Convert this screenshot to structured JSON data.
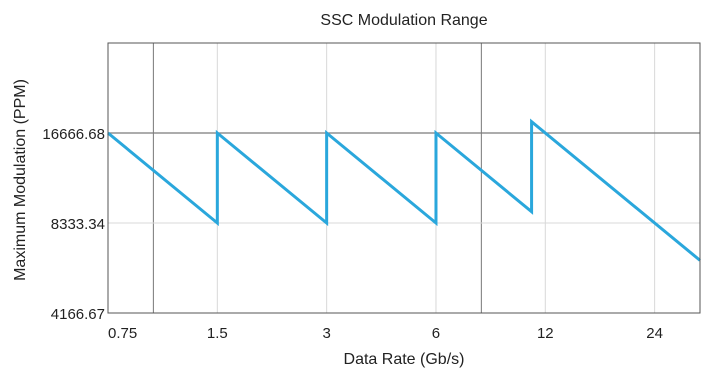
{
  "chart_data": {
    "type": "line",
    "title": "SSC Modulation Range",
    "xlabel": "Data Rate (Gb/s)",
    "ylabel": "Maximum Modulation (PPM)",
    "x_scale": "log2",
    "y_scale": "log2",
    "xlim": [
      0.75,
      32
    ],
    "ylim": [
      4166.67,
      33333.36
    ],
    "x_ticks": [
      "0.75",
      "1.5",
      "3",
      "6",
      "12",
      "24"
    ],
    "x_tick_values": [
      0.75,
      1.5,
      3,
      6,
      12,
      24
    ],
    "y_ticks": [
      "4166.67",
      "8333.34",
      "16666.68"
    ],
    "y_tick_values": [
      4166.67,
      8333.34,
      16666.68
    ],
    "grid": true,
    "series": [
      {
        "color": "#2aa7dc",
        "points": [
          [
            0.75,
            16666.68
          ],
          [
            1.5,
            8333.34
          ],
          [
            1.5,
            16666.68
          ],
          [
            3,
            8333.34
          ],
          [
            3,
            16666.68
          ],
          [
            6,
            8333.34
          ],
          [
            6,
            16666.68
          ],
          [
            11,
            9090.92
          ],
          [
            11,
            18181.84
          ],
          [
            32,
            6250
          ]
        ]
      }
    ]
  }
}
